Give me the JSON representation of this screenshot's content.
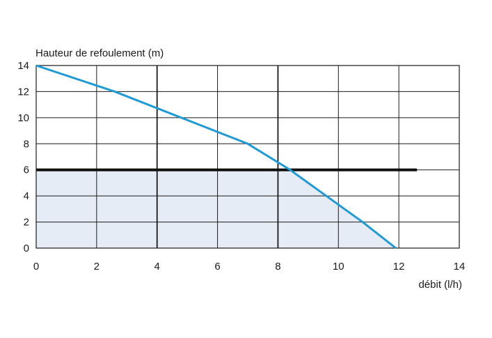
{
  "chart_data": {
    "type": "line",
    "ylabel": "Hauteur de refoulement (m)",
    "xlabel": "débit (l/h)",
    "xlim": [
      0,
      14
    ],
    "ylim": [
      0,
      14
    ],
    "x_ticks": [
      0,
      2,
      4,
      6,
      8,
      10,
      12,
      14
    ],
    "y_ticks": [
      0,
      2,
      4,
      6,
      8,
      10,
      12,
      14
    ],
    "x_tick_labels": [
      "0",
      "2",
      "4",
      "6",
      "8",
      "10",
      "12",
      "14"
    ],
    "y_tick_labels": [
      "0",
      "2",
      "4",
      "6",
      "8",
      "10",
      "12",
      "14"
    ],
    "grid": true,
    "series": [
      {
        "color": "#1e9ad6",
        "x": [
          0,
          2.6,
          4.8,
          7.0,
          8.4,
          10.8,
          11.9
        ],
        "y": [
          14,
          12.0,
          10.0,
          8.0,
          6.0,
          2.0,
          0
        ]
      }
    ],
    "reference_line": {
      "y": 6,
      "x_end": 12.6,
      "color": "#111111"
    },
    "shaded_region": {
      "y_max": 6,
      "color": "#e6ecf6"
    }
  }
}
